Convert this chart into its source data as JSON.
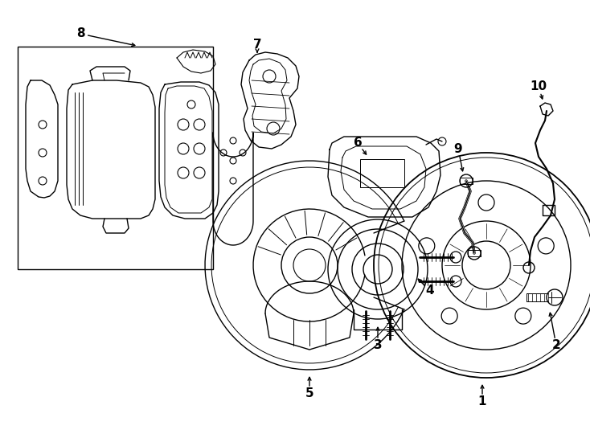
{
  "background_color": "#ffffff",
  "line_color": "#000000",
  "lw": 1.0,
  "fig_width": 7.34,
  "fig_height": 5.4,
  "dpi": 100
}
